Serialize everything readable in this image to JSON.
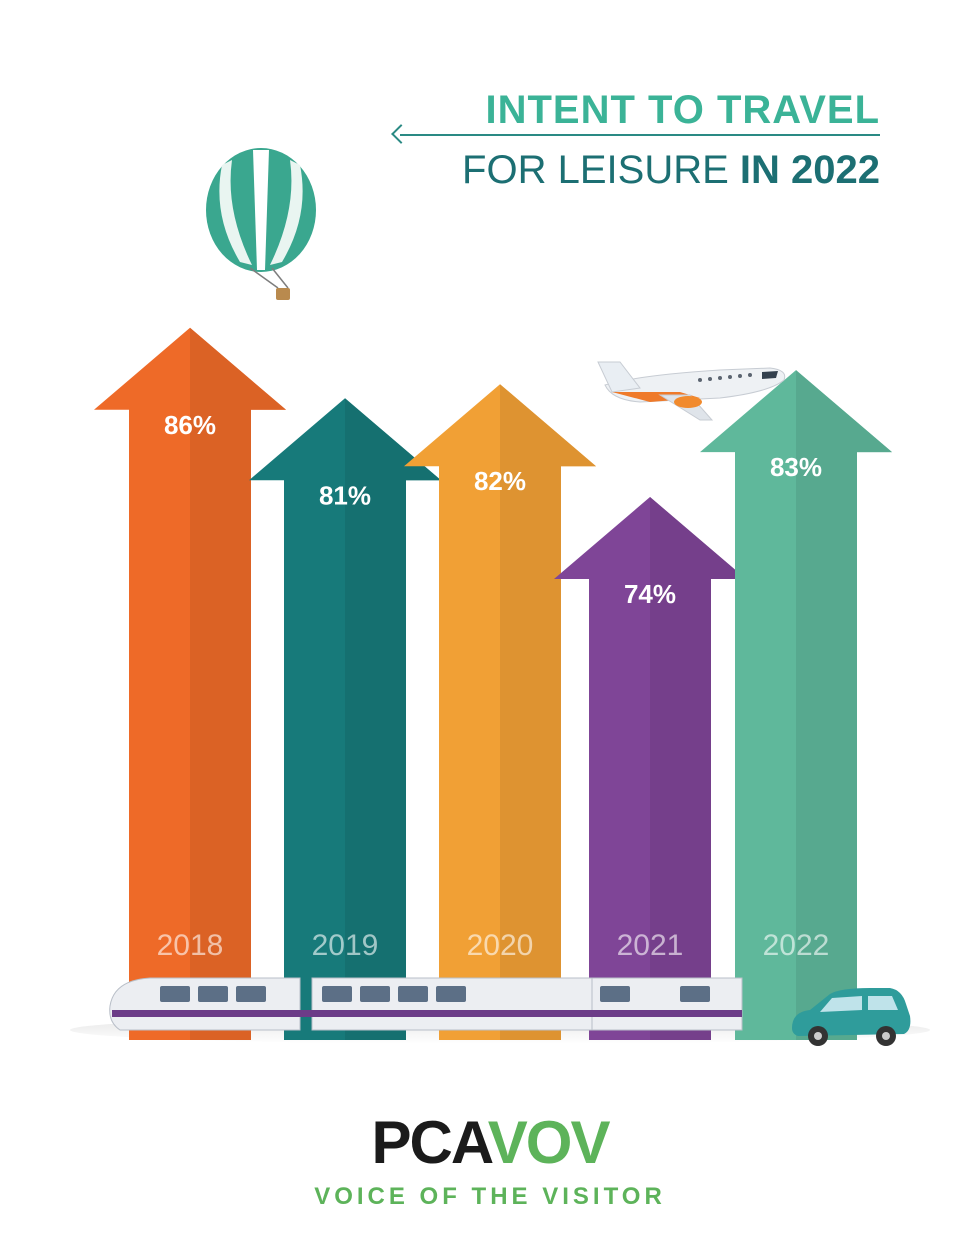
{
  "header": {
    "title_line1": "INTENT TO TRAVEL",
    "title_line2_a": "FOR LEISURE",
    "title_line2_b": "IN 2022"
  },
  "logo": {
    "word_a": "PCA",
    "word_b": "VOV",
    "tagline": "VOICE OF THE VISITOR"
  },
  "icons": [
    "hot-air-balloon-icon",
    "airplane-icon",
    "train-icon",
    "car-icon"
  ],
  "chart_data": {
    "type": "bar",
    "categories": [
      "2018",
      "2019",
      "2020",
      "2021",
      "2022"
    ],
    "values": [
      86,
      81,
      82,
      74,
      83
    ],
    "value_labels": [
      "86%",
      "81%",
      "82%",
      "74%",
      "83%"
    ],
    "unit": "%",
    "colors": [
      "#ee6a28",
      "#177a7a",
      "#f1a035",
      "#7f4597",
      "#5fb89b"
    ],
    "title": "INTENT TO TRAVEL FOR LEISURE IN 2022",
    "xlabel": "",
    "ylabel": "",
    "grid": false,
    "legend": "none"
  }
}
